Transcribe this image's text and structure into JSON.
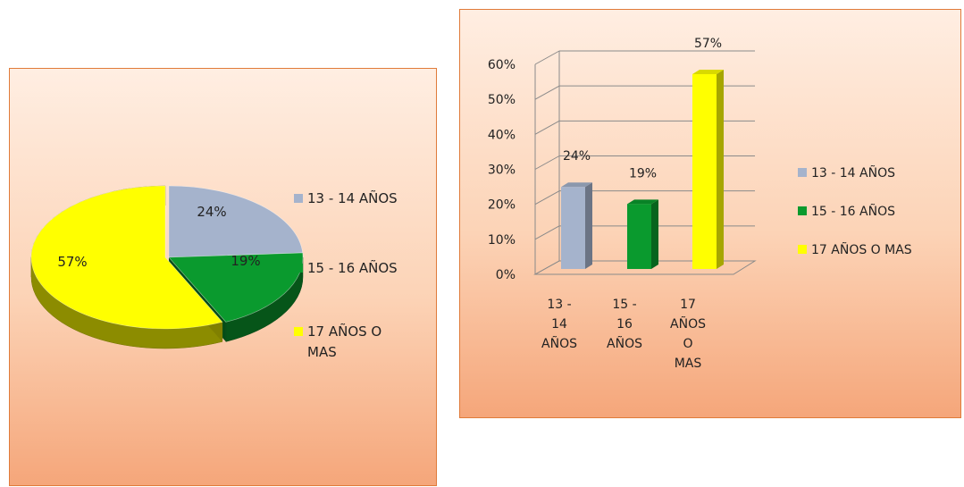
{
  "colors": {
    "series_1": "#a5b3cc",
    "series_2": "#0a9a2e",
    "series_3": "#ffff00"
  },
  "chart_data": [
    {
      "type": "pie",
      "title": "",
      "categories": [
        "13 - 14 AÑOS",
        "15 - 16 AÑOS",
        "17 AÑOS O MAS"
      ],
      "values": [
        24,
        19,
        57
      ],
      "data_labels": [
        "24%",
        "19%",
        "57%"
      ],
      "legend": {
        "placement": "right",
        "lines": [
          [
            "13 - 14 AÑOS"
          ],
          [
            "15 - 16 AÑOS"
          ],
          [
            "17 AÑOS O",
            "MAS"
          ]
        ]
      },
      "style": "3d-exploded"
    },
    {
      "type": "bar",
      "title": "",
      "categories": [
        "13 - 14 AÑOS",
        "15 - 16 AÑOS",
        "17 AÑOS O MAS"
      ],
      "category_label_lines": [
        [
          "13 -",
          "14",
          "AÑOS"
        ],
        [
          "15 -",
          "16",
          "AÑOS"
        ],
        [
          "17",
          "AÑOS",
          "O",
          "MAS"
        ]
      ],
      "values": [
        24,
        19,
        57
      ],
      "data_labels": [
        "24%",
        "19%",
        "57%"
      ],
      "y_ticks": [
        "0%",
        "10%",
        "20%",
        "30%",
        "40%",
        "50%",
        "60%"
      ],
      "ylim": [
        0,
        60
      ],
      "grid": true,
      "legend": {
        "placement": "right",
        "entries": [
          "13 - 14 AÑOS",
          "15 - 16 AÑOS",
          "17 AÑOS O MAS"
        ]
      },
      "style": "3d-column"
    }
  ]
}
